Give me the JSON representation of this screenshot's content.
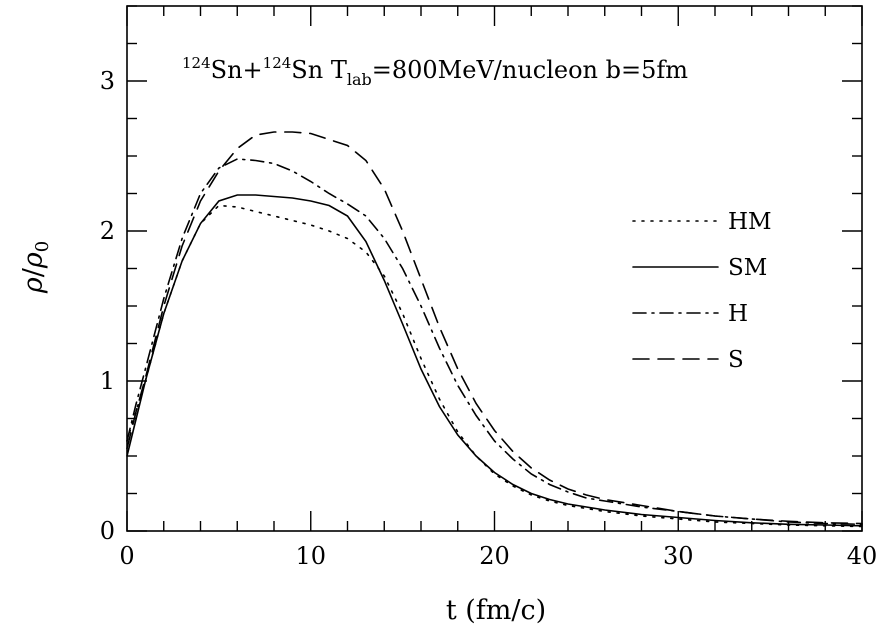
{
  "chart_data": {
    "type": "line",
    "title": {
      "a1": "124",
      "p1": "Sn+",
      "a2": "124",
      "p2": "Sn T",
      "sub": "lab",
      "p3": "=800MeV/nucleon b=5fm"
    },
    "xlabel": "t (fm/c)",
    "ylabel": {
      "rho": "ρ",
      "slash": "/",
      "rho0": "ρ",
      "sub0": "0"
    },
    "xlim": [
      0,
      40
    ],
    "ylim": [
      0,
      3.5
    ],
    "xticks_major": [
      0,
      10,
      20,
      30,
      40
    ],
    "xtick_labels": [
      "0",
      "10",
      "20",
      "30",
      "40"
    ],
    "yticks_major": [
      0,
      1,
      2,
      3
    ],
    "ytick_labels": [
      "0",
      "1",
      "2",
      "3"
    ],
    "xminor_step": 2,
    "yminor_step": 0.25,
    "grid": false,
    "legend_position": "right",
    "series": [
      {
        "name": "HM",
        "style": "dotted",
        "x": [
          0,
          0.5,
          1,
          2,
          3,
          4,
          5,
          6,
          7,
          8,
          9,
          10,
          11,
          12,
          13,
          14,
          15,
          16,
          17,
          18,
          19,
          20,
          21,
          22,
          23,
          24,
          25,
          26,
          28,
          30,
          32,
          34,
          36,
          38,
          40
        ],
        "y": [
          0.6,
          0.8,
          1.0,
          1.45,
          1.8,
          2.05,
          2.17,
          2.16,
          2.13,
          2.1,
          2.07,
          2.04,
          2.0,
          1.95,
          1.86,
          1.7,
          1.45,
          1.15,
          0.88,
          0.66,
          0.5,
          0.38,
          0.3,
          0.24,
          0.2,
          0.17,
          0.15,
          0.13,
          0.1,
          0.08,
          0.06,
          0.05,
          0.04,
          0.035,
          0.03
        ]
      },
      {
        "name": "SM",
        "style": "solid",
        "x": [
          0,
          0.5,
          1,
          2,
          3,
          4,
          5,
          6,
          7,
          8,
          9,
          10,
          11,
          12,
          13,
          14,
          15,
          16,
          17,
          18,
          19,
          20,
          21,
          22,
          23,
          24,
          25,
          26,
          28,
          30,
          32,
          34,
          36,
          38,
          40
        ],
        "y": [
          0.5,
          0.75,
          1.0,
          1.45,
          1.8,
          2.05,
          2.2,
          2.24,
          2.24,
          2.23,
          2.22,
          2.2,
          2.17,
          2.1,
          1.93,
          1.67,
          1.38,
          1.08,
          0.83,
          0.64,
          0.5,
          0.39,
          0.31,
          0.25,
          0.21,
          0.18,
          0.16,
          0.14,
          0.11,
          0.09,
          0.07,
          0.055,
          0.045,
          0.04,
          0.035
        ]
      },
      {
        "name": "H",
        "style": "dash-dot",
        "x": [
          0,
          0.5,
          1,
          2,
          3,
          4,
          5,
          6,
          7,
          8,
          9,
          10,
          11,
          12,
          13,
          14,
          15,
          16,
          17,
          18,
          19,
          20,
          21,
          22,
          23,
          24,
          25,
          26,
          28,
          30,
          32,
          34,
          36,
          38,
          40
        ],
        "y": [
          0.6,
          0.85,
          1.08,
          1.55,
          1.95,
          2.25,
          2.42,
          2.48,
          2.47,
          2.45,
          2.4,
          2.33,
          2.25,
          2.18,
          2.1,
          1.95,
          1.75,
          1.5,
          1.22,
          0.97,
          0.77,
          0.6,
          0.48,
          0.38,
          0.31,
          0.26,
          0.22,
          0.2,
          0.16,
          0.13,
          0.1,
          0.08,
          0.06,
          0.05,
          0.045
        ]
      },
      {
        "name": "S",
        "style": "dashed",
        "x": [
          0,
          0.5,
          1,
          2,
          3,
          4,
          5,
          6,
          7,
          8,
          9,
          10,
          11,
          12,
          13,
          14,
          15,
          16,
          17,
          18,
          19,
          20,
          21,
          22,
          23,
          24,
          25,
          26,
          28,
          30,
          32,
          34,
          36,
          38,
          40
        ],
        "y": [
          0.55,
          0.8,
          1.02,
          1.5,
          1.9,
          2.2,
          2.4,
          2.55,
          2.64,
          2.66,
          2.66,
          2.65,
          2.61,
          2.57,
          2.47,
          2.28,
          2.0,
          1.68,
          1.36,
          1.08,
          0.85,
          0.67,
          0.53,
          0.42,
          0.34,
          0.28,
          0.24,
          0.21,
          0.17,
          0.13,
          0.1,
          0.08,
          0.065,
          0.055,
          0.05
        ]
      }
    ]
  }
}
